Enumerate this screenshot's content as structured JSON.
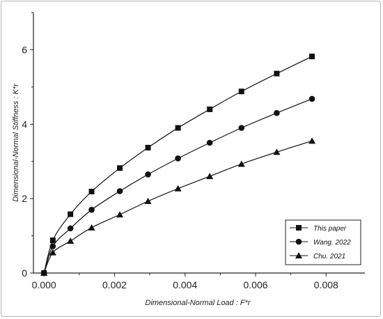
{
  "chart_data": {
    "type": "line",
    "xlabel": "Dimensional-Normal Load : F*r",
    "ylabel": "Dimensional-Normal Stiffness : K*r",
    "xlim": [
      -0.0003,
      0.0091
    ],
    "ylim": [
      0,
      7.0
    ],
    "x_ticks": [
      0.0,
      0.002,
      0.004,
      0.006,
      0.008
    ],
    "x_tick_labels": [
      "0.000",
      "0.002",
      "0.004",
      "0.006",
      "0.008"
    ],
    "y_ticks": [
      0,
      2,
      4,
      6
    ],
    "y_tick_labels": [
      "0",
      "2",
      "4",
      "6"
    ],
    "grid": false,
    "legend_position": "bottom-right",
    "series": [
      {
        "name": "This paper",
        "marker": "square",
        "x": [
          0.0,
          0.00025,
          0.00075,
          0.00135,
          0.00215,
          0.00295,
          0.0038,
          0.0047,
          0.0056,
          0.0066,
          0.0076
        ],
        "y": [
          0.0,
          0.88,
          1.58,
          2.19,
          2.82,
          3.37,
          3.9,
          4.4,
          4.88,
          5.36,
          5.82
        ]
      },
      {
        "name": "Wang. 2022",
        "marker": "circle",
        "x": [
          0.0,
          0.00025,
          0.00075,
          0.00135,
          0.00215,
          0.00295,
          0.0038,
          0.0047,
          0.0056,
          0.0066,
          0.0076
        ],
        "y": [
          0.0,
          0.72,
          1.2,
          1.7,
          2.2,
          2.65,
          3.08,
          3.5,
          3.9,
          4.3,
          4.68
        ]
      },
      {
        "name": "Chu. 2021",
        "marker": "triangle",
        "x": [
          0.0,
          0.00025,
          0.00075,
          0.00135,
          0.00215,
          0.00295,
          0.0038,
          0.0047,
          0.0056,
          0.0066,
          0.0076
        ],
        "y": [
          0.0,
          0.55,
          0.86,
          1.22,
          1.57,
          1.93,
          2.27,
          2.6,
          2.93,
          3.25,
          3.55
        ]
      }
    ]
  }
}
